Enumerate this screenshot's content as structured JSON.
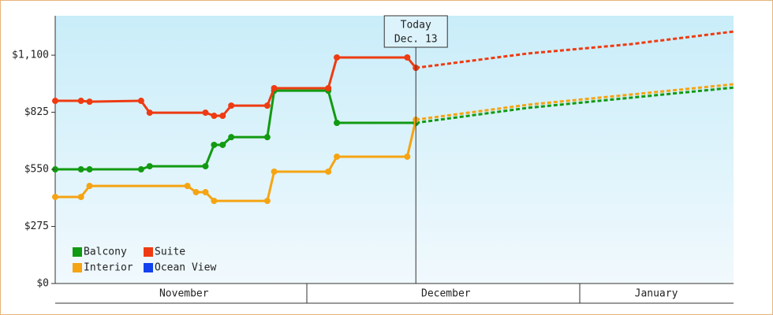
{
  "chart_data": {
    "type": "line",
    "ylim": [
      0,
      1290
    ],
    "yticks": [
      {
        "value": 0,
        "label": "$0"
      },
      {
        "value": 275,
        "label": "$275"
      },
      {
        "value": 550,
        "label": "$550"
      },
      {
        "value": 825,
        "label": "$825"
      },
      {
        "value": 1100,
        "label": "$1,100"
      }
    ],
    "xlim": [
      0,
      79
    ],
    "xticks": [
      {
        "value": 15,
        "label": "November"
      },
      {
        "value": 45.5,
        "label": "December"
      },
      {
        "value": 70,
        "label": "January"
      }
    ],
    "today": {
      "x": 42,
      "label": [
        "Today",
        "Dec. 13"
      ]
    },
    "legend": "lower left",
    "series": [
      {
        "name": "Balcony",
        "color": "#129a12",
        "x": [
          0,
          3,
          4,
          10,
          11,
          17.5,
          18.5,
          19.5,
          20.5,
          24.7,
          25.5,
          31.8,
          32.8,
          42
        ],
        "values": [
          550,
          550,
          550,
          550,
          565,
          565,
          668,
          668,
          705,
          705,
          929,
          929,
          774,
          774
        ],
        "forecast": {
          "x": [
            42,
            55,
            67,
            79
          ],
          "values": [
            774,
            846,
            895,
            944
          ]
        }
      },
      {
        "name": "Suite",
        "color": "#ee3b12",
        "x": [
          0,
          3,
          4,
          10,
          11,
          17.5,
          18.5,
          19.5,
          20.5,
          24.7,
          25.5,
          31.8,
          32.8,
          41,
          42
        ],
        "values": [
          880,
          880,
          876,
          880,
          823,
          823,
          808,
          808,
          857,
          857,
          941,
          941,
          1089,
          1089,
          1039
        ],
        "forecast": {
          "x": [
            42,
            55,
            67,
            79
          ],
          "values": [
            1039,
            1108,
            1153,
            1214
          ]
        }
      },
      {
        "name": "Interior",
        "color": "#f5a412",
        "x": [
          0,
          3,
          4,
          15.4,
          16.4,
          17.5,
          18.5,
          24.7,
          25.5,
          31.8,
          32.8,
          41,
          42
        ],
        "values": [
          417,
          417,
          470,
          470,
          440,
          440,
          398,
          398,
          539,
          539,
          611,
          611,
          789
        ],
        "forecast": {
          "x": [
            42,
            55,
            67,
            79
          ],
          "values": [
            789,
            861,
            910,
            960
          ]
        }
      },
      {
        "name": "Ocean View",
        "color": "#1242ee",
        "x": [],
        "values": []
      }
    ]
  }
}
